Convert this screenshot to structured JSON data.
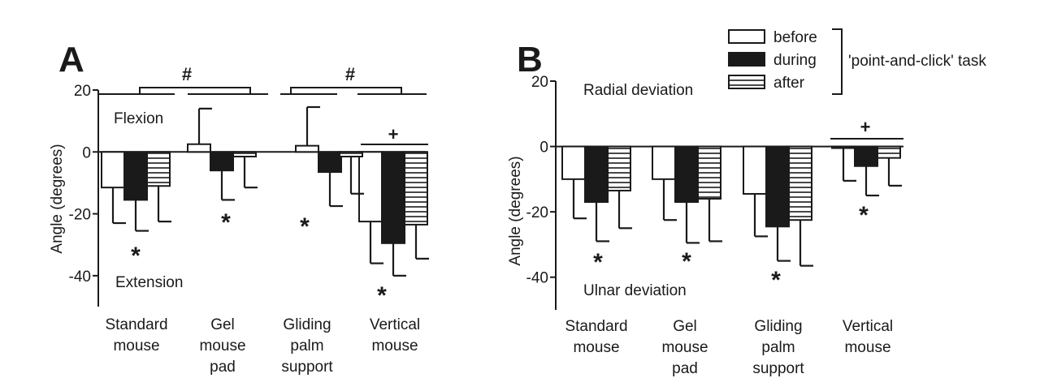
{
  "legend": {
    "entries": [
      {
        "label": "before",
        "style": "open"
      },
      {
        "label": "during",
        "style": "solid"
      },
      {
        "label": "after",
        "style": "hatched"
      }
    ],
    "group_label": "'point-and-click' task"
  },
  "chart_data": [
    {
      "panel": "A",
      "type": "bar",
      "ylabel": "Angle (degrees)",
      "ylim": [
        -50,
        20
      ],
      "yticks": [
        20,
        0,
        -20,
        -40
      ],
      "annotations": {
        "top": "Flexion",
        "bottom": "Extension"
      },
      "categories": [
        [
          "Standard",
          "mouse"
        ],
        [
          "Gel",
          "mouse",
          "pad"
        ],
        [
          "Gliding",
          "palm",
          "support"
        ],
        [
          "Vertical",
          "mouse"
        ]
      ],
      "series": [
        {
          "name": "before",
          "values": [
            -11.5,
            2.5,
            2,
            -22.5
          ],
          "err": [
            11.5,
            11.5,
            12.5,
            13.5
          ]
        },
        {
          "name": "during",
          "values": [
            -15.5,
            -6,
            -6.5,
            -29.5
          ],
          "err": [
            10,
            9.5,
            11,
            10.5
          ]
        },
        {
          "name": "after",
          "values": [
            -11,
            -1.5,
            -1.5,
            -23.5
          ],
          "err": [
            11.5,
            10,
            12,
            11
          ]
        }
      ],
      "significance": {
        "star": "*",
        "hash": "#",
        "plus": "+"
      }
    },
    {
      "panel": "B",
      "type": "bar",
      "ylabel": "Angle (degrees)",
      "ylim": [
        -50,
        20
      ],
      "yticks": [
        20,
        0,
        -20,
        -40
      ],
      "annotations": {
        "top": "Radial deviation",
        "bottom": "Ulnar deviation"
      },
      "categories": [
        [
          "Standard",
          "mouse"
        ],
        [
          "Gel",
          "mouse",
          "pad"
        ],
        [
          "Gliding",
          "palm",
          "support"
        ],
        [
          "Vertical",
          "mouse"
        ]
      ],
      "series": [
        {
          "name": "before",
          "values": [
            -10,
            -10,
            -14.5,
            -0.5
          ],
          "err": [
            12,
            12.5,
            13,
            10
          ]
        },
        {
          "name": "during",
          "values": [
            -17,
            -17,
            -24.5,
            -6
          ],
          "err": [
            12,
            12.5,
            10.5,
            9
          ]
        },
        {
          "name": "after",
          "values": [
            -13.5,
            -16,
            -22.5,
            -3.5
          ],
          "err": [
            11.5,
            13,
            14,
            8.5
          ]
        }
      ],
      "significance": {
        "star": "*",
        "plus": "+"
      }
    }
  ]
}
